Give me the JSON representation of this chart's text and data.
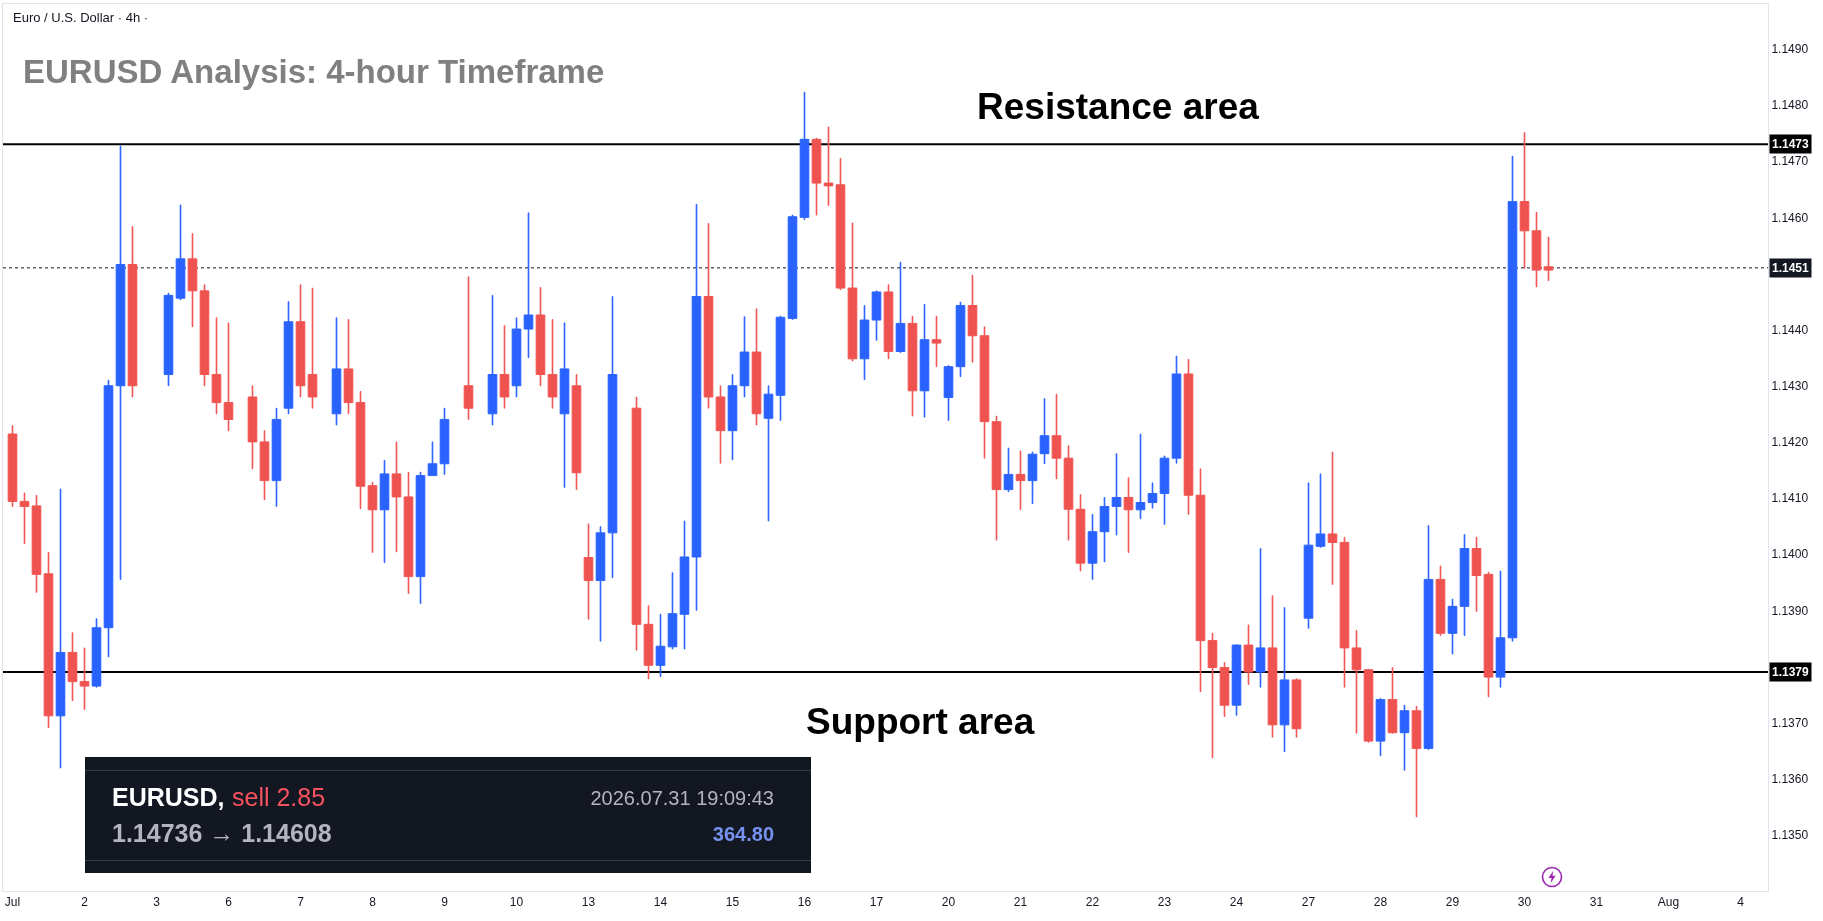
{
  "chart_data": {
    "type": "candlestick",
    "title": "EURUSD Analysis: 4-hour Timeframe",
    "subtitle": "Euro / U.S. Dollar · 4h ·",
    "annotations": [
      "Resistance area",
      "Support area",
      "EURUSD,",
      "sell 2.85",
      "2026.07.31 19:09:43",
      "1.14736 → 1.14608",
      "364.80"
    ],
    "categories": [
      "Jul",
      null,
      null,
      null,
      null,
      null,
      "2",
      null,
      null,
      null,
      null,
      null,
      "3",
      null,
      null,
      null,
      null,
      null,
      "6",
      null,
      null,
      null,
      null,
      null,
      "7",
      null,
      null,
      null,
      null,
      null,
      "8",
      null,
      null,
      null,
      null,
      null,
      "9",
      null,
      null,
      null,
      null,
      null,
      "10",
      null,
      null,
      null,
      null,
      null,
      "13",
      null,
      null,
      null,
      null,
      null,
      "14",
      null,
      null,
      null,
      null,
      null,
      "15",
      null,
      null,
      null,
      null,
      null,
      "16",
      null,
      null,
      null,
      null,
      null,
      "17",
      null,
      null,
      null,
      null,
      null,
      "20",
      null,
      null,
      null,
      null,
      null,
      "21",
      null,
      null,
      null,
      null,
      null,
      "22",
      null,
      null,
      null,
      null,
      null,
      "23",
      null,
      null,
      null,
      null,
      null,
      "24",
      null,
      null,
      null,
      null,
      null,
      "27",
      null,
      null,
      null,
      null,
      null,
      "28",
      null,
      null,
      null,
      null,
      null,
      "29",
      null,
      null,
      null,
      null,
      null,
      "30",
      null,
      null,
      null,
      null,
      null,
      "31",
      null,
      null,
      null,
      null,
      null,
      "Aug",
      null,
      null,
      null,
      null,
      null,
      "4"
    ],
    "ohlc": [
      [
        1.14214,
        1.14229,
        1.14085,
        1.14094
      ],
      [
        1.14094,
        1.14109,
        1.14019,
        1.14085
      ],
      [
        1.14086,
        1.14105,
        1.13932,
        1.13964
      ],
      [
        1.13965,
        1.14003,
        1.13691,
        1.13712
      ],
      [
        1.13712,
        1.14116,
        1.13619,
        1.13825
      ],
      [
        1.13825,
        1.1386,
        1.13739,
        1.13773
      ],
      [
        1.13773,
        1.13833,
        1.13723,
        1.13765
      ],
      [
        1.13765,
        1.13885,
        1.13763,
        1.13869
      ],
      [
        1.13869,
        1.1431,
        1.13817,
        1.143
      ],
      [
        1.143,
        1.14727,
        1.13955,
        1.14516
      ],
      [
        1.14516,
        1.14584,
        1.1428,
        1.143
      ],
      null,
      null,
      [
        1.1432,
        1.14465,
        1.143,
        1.14461
      ],
      [
        1.14456,
        1.14622,
        1.14453,
        1.14526
      ],
      [
        1.14526,
        1.14571,
        1.14405,
        1.14469
      ],
      [
        1.14469,
        1.1448,
        1.143,
        1.1432
      ],
      [
        1.1432,
        1.14421,
        1.1425,
        1.1427
      ],
      [
        1.1427,
        1.14412,
        1.1422,
        1.1424
      ],
      null,
      [
        1.1428,
        1.143,
        1.14152,
        1.142
      ],
      [
        1.142,
        1.1422,
        1.14097,
        1.14131
      ],
      [
        1.14131,
        1.1426,
        1.14085,
        1.1424
      ],
      [
        1.1426,
        1.1445,
        1.1425,
        1.14414
      ],
      [
        1.14414,
        1.1448,
        1.1428,
        1.143
      ],
      [
        1.1432,
        1.14474,
        1.1426,
        1.1428
      ],
      null,
      [
        1.1425,
        1.14421,
        1.1423,
        1.1433
      ],
      [
        1.1433,
        1.14418,
        1.1425,
        1.1427
      ],
      [
        1.1427,
        1.1429,
        1.14081,
        1.14121
      ],
      [
        1.14122,
        1.14128,
        1.14003,
        1.14079
      ],
      [
        1.14079,
        1.14167,
        1.13985,
        1.14143
      ],
      [
        1.14143,
        1.142,
        1.14004,
        1.14102
      ],
      [
        1.14102,
        1.14146,
        1.1393,
        1.1396
      ],
      [
        1.1396,
        1.14146,
        1.13912,
        1.1414
      ],
      [
        1.1414,
        1.142,
        1.1414,
        1.14161
      ],
      [
        1.14161,
        1.1426,
        1.14142,
        1.1424
      ],
      null,
      [
        1.143,
        1.14494,
        1.1424,
        1.1426
      ],
      null,
      [
        1.1425,
        1.14461,
        1.1423,
        1.1432
      ],
      [
        1.1432,
        1.14407,
        1.1426,
        1.1428
      ],
      [
        1.143,
        1.14421,
        1.1428,
        1.14401
      ],
      [
        1.14401,
        1.14608,
        1.1435,
        1.14426
      ],
      [
        1.14426,
        1.14475,
        1.143,
        1.1432
      ],
      [
        1.1432,
        1.14418,
        1.1426,
        1.1428
      ],
      [
        1.1425,
        1.14412,
        1.14119,
        1.1433
      ],
      [
        1.143,
        1.1432,
        1.14115,
        1.14145
      ],
      [
        1.13994,
        1.14054,
        1.13884,
        1.13953
      ],
      [
        1.13953,
        1.14049,
        1.13845,
        1.14038
      ],
      [
        1.14038,
        1.14459,
        1.13958,
        1.1432
      ],
      null,
      [
        1.1426,
        1.1428,
        1.13829,
        1.13875
      ],
      [
        1.13875,
        1.13908,
        1.13778,
        1.13802
      ],
      [
        1.13802,
        1.13893,
        1.13782,
        1.13836
      ],
      [
        1.13835,
        1.13967,
        1.13831,
        1.13894
      ],
      [
        1.13893,
        1.14059,
        1.13831,
        1.13995
      ],
      [
        1.13995,
        1.14623,
        1.139,
        1.14459
      ],
      [
        1.14459,
        1.14589,
        1.1426,
        1.1428
      ],
      [
        1.1428,
        1.143,
        1.14162,
        1.1422
      ],
      [
        1.1422,
        1.1432,
        1.14168,
        1.143
      ],
      [
        1.143,
        1.14423,
        1.1428,
        1.1436
      ],
      [
        1.1436,
        1.14437,
        1.1423,
        1.1425
      ],
      [
        1.14242,
        1.143,
        1.14059,
        1.14285
      ],
      [
        1.14283,
        1.14424,
        1.14238,
        1.14422
      ],
      [
        1.1442,
        1.14604,
        1.14418,
        1.14601
      ],
      [
        1.146,
        1.14823,
        1.14596,
        1.14739
      ],
      [
        1.14739,
        1.14741,
        1.14604,
        1.14661
      ],
      [
        1.14661,
        1.14761,
        1.14621,
        1.14656
      ],
      [
        1.14658,
        1.14705,
        1.14471,
        1.14474
      ],
      [
        1.14474,
        1.1459,
        1.14344,
        1.14348
      ],
      [
        1.14348,
        1.14443,
        1.14311,
        1.14417
      ],
      [
        1.14417,
        1.14469,
        1.14381,
        1.14467
      ],
      [
        1.14467,
        1.1448,
        1.14348,
        1.14361
      ],
      [
        1.14361,
        1.1452,
        1.14359,
        1.14411
      ],
      [
        1.14411,
        1.14424,
        1.14246,
        1.14291
      ],
      [
        1.14291,
        1.14445,
        1.14244,
        1.14382
      ],
      [
        1.14382,
        1.14424,
        1.14334,
        1.14376
      ],
      [
        1.14279,
        1.14336,
        1.14238,
        1.14334
      ],
      [
        1.14334,
        1.14449,
        1.14316,
        1.14443
      ],
      [
        1.14443,
        1.14497,
        1.14342,
        1.14389
      ],
      [
        1.14389,
        1.14405,
        1.14171,
        1.14236
      ],
      [
        1.14236,
        1.14246,
        1.14025,
        1.14115
      ],
      [
        1.14115,
        1.14189,
        1.14111,
        1.14142
      ],
      [
        1.14142,
        1.14184,
        1.14079,
        1.14131
      ],
      [
        1.14131,
        1.14182,
        1.1409,
        1.14178
      ],
      [
        1.14179,
        1.14277,
        1.14161,
        1.14211
      ],
      [
        1.14211,
        1.14285,
        1.14134,
        1.14171
      ],
      [
        1.14171,
        1.14193,
        1.14025,
        1.1408
      ],
      [
        1.1408,
        1.14106,
        1.1397,
        1.13984
      ],
      [
        1.13984,
        1.14071,
        1.13955,
        1.1404
      ],
      [
        1.1404,
        1.14101,
        1.13986,
        1.14085
      ],
      [
        1.14085,
        1.14179,
        1.14034,
        1.14101
      ],
      [
        1.14101,
        1.14136,
        1.14003,
        1.14079
      ],
      [
        1.14079,
        1.14214,
        1.14063,
        1.14092
      ],
      [
        1.14092,
        1.14127,
        1.14082,
        1.14108
      ],
      [
        1.14108,
        1.14175,
        1.14053,
        1.14171
      ],
      [
        1.14171,
        1.14353,
        1.14162,
        1.14321
      ],
      [
        1.14321,
        1.14347,
        1.14071,
        1.14105
      ],
      [
        1.14105,
        1.14152,
        1.13755,
        1.13846
      ],
      [
        1.13846,
        1.13859,
        1.13637,
        1.13798
      ],
      [
        1.13798,
        1.13807,
        1.13711,
        1.13731
      ],
      [
        1.13731,
        1.13839,
        1.13713,
        1.13838
      ],
      [
        1.13838,
        1.13874,
        1.13768,
        1.1379
      ],
      [
        1.1379,
        1.1401,
        1.13763,
        1.13833
      ],
      [
        1.13833,
        1.13926,
        1.13674,
        1.13696
      ],
      [
        1.13696,
        1.13905,
        1.13648,
        1.13776
      ],
      [
        1.13776,
        1.13778,
        1.13674,
        1.13689
      ],
      [
        1.13886,
        1.14127,
        1.13868,
        1.14016
      ],
      [
        1.14014,
        1.14143,
        1.14012,
        1.14036
      ],
      [
        1.14036,
        1.14182,
        1.13946,
        1.14021
      ],
      [
        1.14021,
        1.1403,
        1.13763,
        1.13833
      ],
      [
        1.13833,
        1.13864,
        1.13681,
        1.13794
      ],
      [
        1.13794,
        1.13795,
        1.13665,
        1.13667
      ],
      [
        1.13667,
        1.13743,
        1.13641,
        1.13741
      ],
      [
        1.13741,
        1.13798,
        1.13681,
        1.13682
      ],
      [
        1.13682,
        1.13731,
        1.13615,
        1.13721
      ],
      [
        1.13721,
        1.13729,
        1.13532,
        1.13654
      ],
      [
        1.13654,
        1.14051,
        1.13652,
        1.13955
      ],
      [
        1.13955,
        1.13979,
        1.13855,
        1.13859
      ],
      [
        1.13859,
        1.1392,
        1.13822,
        1.13907
      ],
      [
        1.13907,
        1.14035,
        1.13855,
        1.1401
      ],
      [
        1.1401,
        1.1403,
        1.13898,
        1.13962
      ],
      [
        1.13964,
        1.13968,
        1.13746,
        1.13781
      ],
      [
        1.13781,
        1.1397,
        1.13763,
        1.13851
      ],
      [
        1.13851,
        1.14709,
        1.13845,
        1.14628
      ],
      [
        1.14628,
        1.14751,
        1.14509,
        1.14576
      ],
      [
        1.14576,
        1.14609,
        1.14476,
        1.14506
      ],
      [
        1.14512,
        1.14565,
        1.14487,
        1.14506
      ],
      null,
      null,
      null,
      null,
      null,
      null,
      null,
      null,
      null,
      null,
      null,
      null,
      null,
      null,
      null,
      null
    ],
    "colors": [
      "#ef5350",
      "#ef5350",
      "#ef5350",
      "#ef5350",
      "#2962ff",
      "#ef5350",
      "#ef5350",
      "#2962ff",
      "#2962ff",
      "#2962ff",
      "#ef5350",
      null,
      null,
      "#2962ff",
      "#2962ff",
      "#ef5350",
      "#ef5350",
      "#ef5350",
      "#ef5350",
      null,
      "#ef5350",
      "#ef5350",
      "#2962ff",
      "#2962ff",
      "#ef5350",
      "#ef5350",
      null,
      "#2962ff",
      "#ef5350",
      "#ef5350",
      "#ef5350",
      "#2962ff",
      "#ef5350",
      "#ef5350",
      "#2962ff",
      "#2962ff",
      "#2962ff",
      null,
      "#ef5350",
      null,
      "#2962ff",
      "#ef5350",
      "#2962ff",
      "#2962ff",
      "#ef5350",
      "#ef5350",
      "#2962ff",
      "#ef5350",
      "#ef5350",
      "#2962ff",
      "#2962ff",
      null,
      "#ef5350",
      "#ef5350",
      "#2962ff",
      "#2962ff",
      "#2962ff",
      "#2962ff",
      "#ef5350",
      "#ef5350",
      "#2962ff",
      "#2962ff",
      "#ef5350",
      "#2962ff",
      "#2962ff",
      "#2962ff",
      "#2962ff",
      "#ef5350",
      "#ef5350",
      "#ef5350",
      "#ef5350",
      "#2962ff",
      "#2962ff",
      "#ef5350",
      "#2962ff",
      "#ef5350",
      "#2962ff",
      "#ef5350",
      "#2962ff",
      "#2962ff",
      "#ef5350",
      "#ef5350",
      "#ef5350",
      "#2962ff",
      "#ef5350",
      "#2962ff",
      "#2962ff",
      "#ef5350",
      "#ef5350",
      "#ef5350",
      "#2962ff",
      "#2962ff",
      "#2962ff",
      "#ef5350",
      "#2962ff",
      "#2962ff",
      "#2962ff",
      "#2962ff",
      "#ef5350",
      "#ef5350",
      "#ef5350",
      "#ef5350",
      "#2962ff",
      "#ef5350",
      "#2962ff",
      "#ef5350",
      "#2962ff",
      "#ef5350",
      "#2962ff",
      "#2962ff",
      "#ef5350",
      "#ef5350",
      "#ef5350",
      "#ef5350",
      "#2962ff",
      "#ef5350",
      "#2962ff",
      "#ef5350",
      "#2962ff",
      "#ef5350",
      "#2962ff",
      "#2962ff",
      "#ef5350",
      "#ef5350",
      "#2962ff",
      "#2962ff",
      "#ef5350",
      "#ef5350",
      "#ef5350",
      null,
      null,
      null,
      null,
      null,
      null,
      null,
      null,
      null,
      null,
      null,
      null,
      null,
      null,
      null,
      null
    ],
    "ylim": [
      1.134,
      1.1498
    ],
    "yticks": [
      {
        "value": 1.135,
        "label": "1.1350"
      },
      {
        "value": 1.136,
        "label": "1.1360"
      },
      {
        "value": 1.137,
        "label": "1.1370"
      },
      {
        "value": 1.139,
        "label": "1.1390"
      },
      {
        "value": 1.14,
        "label": "1.1400"
      },
      {
        "value": 1.141,
        "label": "1.1410"
      },
      {
        "value": 1.142,
        "label": "1.1420"
      },
      {
        "value": 1.143,
        "label": "1.1430"
      },
      {
        "value": 1.144,
        "label": "1.1440"
      },
      {
        "value": 1.146,
        "label": "1.1460"
      },
      {
        "value": 1.147,
        "label": "1.1470"
      },
      {
        "value": 1.148,
        "label": "1.1480"
      },
      {
        "value": 1.149,
        "label": "1.1490"
      }
    ],
    "ref_lines": [
      {
        "axis": "y",
        "value": 1.1473,
        "label": "1.1473",
        "color": "#000000",
        "line_style": "solid"
      },
      {
        "axis": "y",
        "value": 1.1379,
        "label": "1.1379",
        "color": "#000000",
        "line_style": "solid"
      },
      {
        "axis": "y",
        "value": 1.1451,
        "label": "1.1451",
        "color": "#131722",
        "line_style": "dotted"
      }
    ]
  }
}
